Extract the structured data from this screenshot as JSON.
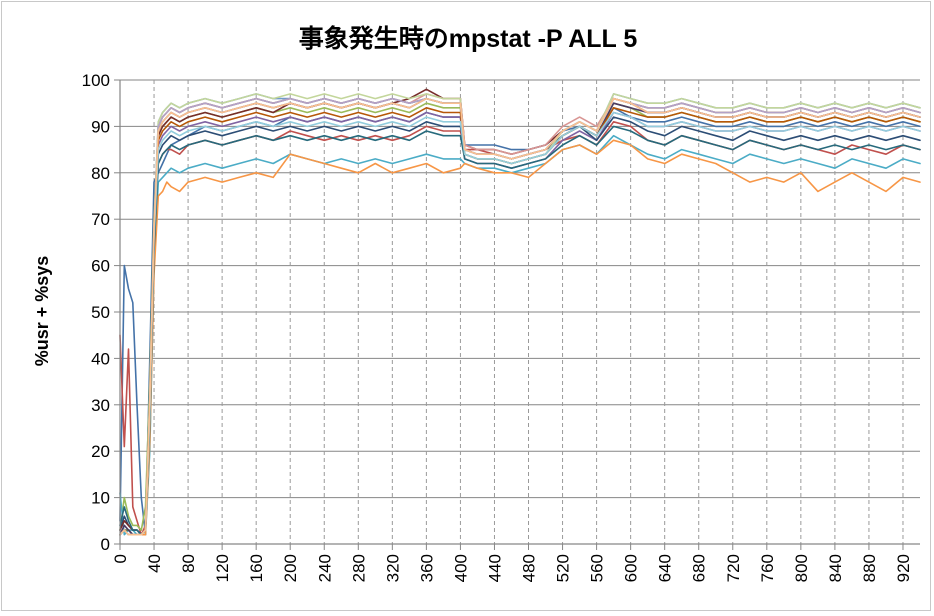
{
  "chart_data": {
    "type": "line",
    "title": "事象発生時のmpstat -P ALL 5",
    "xlabel": "",
    "ylabel": "%usr + %sys",
    "xlim": [
      0,
      940
    ],
    "ylim": [
      0,
      100
    ],
    "y_ticks": [
      "0",
      "10",
      "20",
      "30",
      "40",
      "50",
      "60",
      "70",
      "80",
      "90",
      "100"
    ],
    "x_ticks": [
      "0",
      "40",
      "80",
      "120",
      "160",
      "200",
      "240",
      "280",
      "320",
      "360",
      "400",
      "440",
      "480",
      "520",
      "560",
      "600",
      "640",
      "680",
      "720",
      "760",
      "800",
      "840",
      "880",
      "920"
    ],
    "grid": {
      "horizontal": "solid",
      "vertical": "dashed"
    },
    "legend": "none",
    "x": [
      0,
      5,
      10,
      15,
      20,
      25,
      30,
      35,
      40,
      45,
      50,
      55,
      60,
      70,
      80,
      100,
      120,
      140,
      160,
      180,
      200,
      220,
      240,
      260,
      280,
      300,
      320,
      340,
      360,
      380,
      400,
      405,
      420,
      440,
      460,
      480,
      500,
      520,
      540,
      560,
      580,
      600,
      620,
      640,
      660,
      680,
      700,
      720,
      740,
      760,
      780,
      800,
      820,
      840,
      860,
      880,
      900,
      920,
      940
    ],
    "series": [
      {
        "color": "#4472a8",
        "values": [
          5,
          60,
          55,
          52,
          30,
          10,
          2,
          40,
          78,
          80,
          82,
          84,
          86,
          87,
          88,
          90,
          89,
          90,
          91,
          90,
          92,
          91,
          92,
          91,
          92,
          91,
          92,
          91,
          93,
          92,
          92,
          86,
          86,
          86,
          85,
          85,
          86,
          89,
          90,
          88,
          94,
          92,
          91,
          91,
          92,
          91,
          90,
          90,
          91,
          90,
          90,
          91,
          90,
          91,
          90,
          91,
          90,
          91,
          90
        ]
      },
      {
        "color": "#c0504d",
        "values": [
          45,
          21,
          42,
          8,
          5,
          2,
          4,
          25,
          68,
          82,
          84,
          85,
          85,
          84,
          86,
          87,
          86,
          87,
          88,
          87,
          89,
          88,
          87,
          88,
          87,
          88,
          87,
          88,
          90,
          89,
          89,
          85,
          85,
          84,
          83,
          84,
          85,
          87,
          88,
          86,
          91,
          90,
          87,
          86,
          88,
          87,
          86,
          85,
          87,
          86,
          85,
          86,
          85,
          84,
          86,
          85,
          84,
          86,
          85
        ]
      },
      {
        "color": "#9bbb59",
        "values": [
          3,
          10,
          6,
          4,
          4,
          3,
          8,
          35,
          70,
          88,
          90,
          91,
          92,
          91,
          92,
          93,
          92,
          93,
          94,
          93,
          94,
          93,
          94,
          93,
          94,
          93,
          94,
          93,
          95,
          94,
          94,
          84,
          83,
          83,
          82,
          83,
          84,
          88,
          90,
          88,
          95,
          94,
          92,
          92,
          93,
          92,
          91,
          91,
          92,
          91,
          91,
          92,
          91,
          92,
          91,
          92,
          91,
          92,
          91
        ]
      },
      {
        "color": "#8064a2",
        "values": [
          2,
          4,
          3,
          2,
          2,
          2,
          3,
          30,
          66,
          86,
          88,
          89,
          90,
          89,
          90,
          91,
          90,
          91,
          92,
          91,
          92,
          91,
          92,
          91,
          92,
          91,
          92,
          91,
          93,
          92,
          92,
          83,
          82,
          82,
          81,
          82,
          83,
          87,
          89,
          87,
          93,
          92,
          90,
          90,
          91,
          90,
          89,
          89,
          90,
          89,
          89,
          90,
          89,
          90,
          89,
          90,
          89,
          90,
          89
        ]
      },
      {
        "color": "#4bacc6",
        "values": [
          11,
          2,
          3,
          3,
          2,
          2,
          2,
          20,
          60,
          78,
          79,
          80,
          81,
          80,
          81,
          82,
          81,
          82,
          83,
          82,
          84,
          83,
          82,
          83,
          82,
          83,
          82,
          83,
          84,
          83,
          83,
          82,
          81,
          81,
          80,
          81,
          82,
          85,
          86,
          84,
          88,
          86,
          84,
          83,
          85,
          84,
          83,
          82,
          84,
          83,
          82,
          83,
          82,
          81,
          83,
          82,
          81,
          83,
          82
        ]
      },
      {
        "color": "#f79646",
        "values": [
          2,
          3,
          2,
          2,
          2,
          2,
          2,
          22,
          58,
          75,
          76,
          78,
          77,
          76,
          78,
          79,
          78,
          79,
          80,
          79,
          84,
          83,
          82,
          81,
          80,
          82,
          80,
          81,
          82,
          80,
          81,
          82,
          81,
          80,
          80,
          79,
          82,
          85,
          86,
          84,
          87,
          86,
          83,
          82,
          84,
          83,
          82,
          80,
          78,
          79,
          78,
          80,
          76,
          78,
          80,
          78,
          76,
          79,
          78
        ]
      },
      {
        "color": "#2c4d75",
        "values": [
          3,
          6,
          4,
          3,
          3,
          2,
          3,
          28,
          65,
          84,
          86,
          87,
          88,
          87,
          88,
          89,
          88,
          89,
          90,
          89,
          90,
          89,
          90,
          89,
          90,
          89,
          90,
          89,
          91,
          90,
          90,
          85,
          84,
          84,
          83,
          84,
          85,
          88,
          90,
          87,
          92,
          91,
          89,
          88,
          90,
          89,
          88,
          87,
          89,
          88,
          87,
          88,
          87,
          88,
          87,
          88,
          87,
          88,
          87
        ]
      },
      {
        "color": "#772c2a",
        "values": [
          3,
          5,
          4,
          3,
          3,
          2,
          3,
          32,
          68,
          88,
          90,
          91,
          92,
          91,
          92,
          93,
          92,
          93,
          94,
          93,
          95,
          94,
          95,
          94,
          95,
          94,
          95,
          96,
          98,
          96,
          96,
          86,
          85,
          85,
          84,
          85,
          86,
          89,
          91,
          89,
          96,
          95,
          93,
          93,
          94,
          93,
          92,
          92,
          93,
          92,
          92,
          93,
          92,
          93,
          92,
          93,
          92,
          93,
          92
        ]
      },
      {
        "color": "#5f7530",
        "values": [
          2,
          3,
          3,
          2,
          2,
          2,
          3,
          34,
          70,
          90,
          92,
          93,
          94,
          93,
          94,
          95,
          94,
          95,
          96,
          95,
          96,
          95,
          96,
          95,
          96,
          95,
          96,
          95,
          96,
          95,
          95,
          85,
          84,
          84,
          83,
          84,
          85,
          89,
          91,
          89,
          96,
          95,
          94,
          94,
          95,
          94,
          93,
          93,
          94,
          93,
          93,
          94,
          93,
          94,
          93,
          94,
          93,
          94,
          93
        ]
      },
      {
        "color": "#4d3b62",
        "values": [
          2,
          4,
          3,
          2,
          2,
          2,
          3,
          30,
          67,
          89,
          91,
          92,
          93,
          92,
          93,
          94,
          93,
          94,
          95,
          94,
          95,
          94,
          95,
          94,
          95,
          94,
          95,
          94,
          96,
          95,
          95,
          84,
          83,
          83,
          82,
          83,
          84,
          88,
          90,
          88,
          95,
          94,
          93,
          93,
          94,
          93,
          92,
          92,
          93,
          92,
          92,
          93,
          92,
          93,
          92,
          93,
          92,
          93,
          92
        ]
      },
      {
        "color": "#276a7c",
        "values": [
          4,
          8,
          5,
          3,
          3,
          2,
          3,
          26,
          63,
          82,
          84,
          85,
          86,
          85,
          86,
          87,
          86,
          87,
          88,
          87,
          88,
          87,
          88,
          87,
          88,
          87,
          88,
          87,
          89,
          88,
          88,
          83,
          82,
          82,
          81,
          82,
          83,
          86,
          88,
          86,
          90,
          89,
          87,
          86,
          88,
          87,
          86,
          85,
          87,
          86,
          85,
          86,
          85,
          86,
          85,
          86,
          85,
          86,
          85
        ]
      },
      {
        "color": "#b65708",
        "values": [
          2,
          3,
          2,
          2,
          2,
          2,
          3,
          29,
          66,
          87,
          89,
          90,
          91,
          90,
          91,
          92,
          91,
          92,
          93,
          92,
          93,
          92,
          93,
          92,
          93,
          92,
          93,
          92,
          94,
          93,
          93,
          84,
          83,
          83,
          82,
          83,
          84,
          88,
          90,
          88,
          94,
          93,
          92,
          92,
          93,
          92,
          91,
          91,
          92,
          91,
          91,
          92,
          91,
          92,
          91,
          92,
          91,
          92,
          91
        ]
      },
      {
        "color": "#729aca",
        "values": [
          2,
          3,
          2,
          2,
          2,
          2,
          3,
          33,
          69,
          91,
          93,
          94,
          95,
          94,
          95,
          96,
          95,
          96,
          97,
          96,
          96,
          95,
          96,
          95,
          96,
          95,
          96,
          95,
          96,
          95,
          95,
          85,
          84,
          84,
          83,
          84,
          85,
          89,
          91,
          89,
          97,
          96,
          95,
          95,
          96,
          95,
          94,
          94,
          95,
          94,
          94,
          95,
          94,
          95,
          94,
          95,
          94,
          95,
          94
        ]
      },
      {
        "color": "#d99694",
        "values": [
          2,
          3,
          2,
          2,
          2,
          2,
          3,
          31,
          68,
          90,
          92,
          93,
          94,
          93,
          94,
          95,
          94,
          95,
          96,
          95,
          96,
          95,
          96,
          95,
          96,
          95,
          96,
          95,
          97,
          96,
          96,
          86,
          85,
          85,
          84,
          85,
          86,
          90,
          92,
          90,
          96,
          95,
          94,
          94,
          95,
          94,
          93,
          93,
          94,
          93,
          93,
          94,
          93,
          94,
          93,
          94,
          93,
          94,
          93
        ]
      },
      {
        "color": "#c3d69b",
        "values": [
          2,
          3,
          2,
          2,
          2,
          2,
          3,
          32,
          69,
          91,
          93,
          94,
          95,
          94,
          95,
          96,
          95,
          96,
          97,
          96,
          97,
          96,
          97,
          96,
          97,
          96,
          97,
          96,
          97,
          96,
          96,
          84,
          83,
          83,
          82,
          83,
          84,
          89,
          91,
          89,
          97,
          96,
          95,
          95,
          96,
          95,
          94,
          94,
          95,
          94,
          94,
          95,
          94,
          95,
          94,
          95,
          94,
          95,
          94
        ]
      },
      {
        "color": "#b3a2c7",
        "values": [
          2,
          3,
          2,
          2,
          2,
          2,
          3,
          30,
          68,
          90,
          92,
          93,
          94,
          93,
          94,
          95,
          94,
          95,
          96,
          95,
          96,
          95,
          96,
          95,
          96,
          95,
          96,
          95,
          96,
          95,
          95,
          85,
          84,
          84,
          83,
          84,
          85,
          89,
          91,
          89,
          96,
          95,
          94,
          94,
          95,
          94,
          93,
          93,
          94,
          93,
          93,
          94,
          93,
          94,
          93,
          94,
          93,
          94,
          93
        ]
      },
      {
        "color": "#93cddd",
        "values": [
          2,
          3,
          2,
          2,
          2,
          2,
          3,
          28,
          66,
          85,
          87,
          88,
          89,
          88,
          89,
          90,
          89,
          90,
          91,
          90,
          91,
          90,
          91,
          90,
          91,
          90,
          91,
          90,
          92,
          91,
          91,
          84,
          83,
          83,
          82,
          83,
          84,
          88,
          90,
          88,
          93,
          92,
          90,
          90,
          91,
          90,
          89,
          89,
          90,
          89,
          89,
          90,
          89,
          90,
          89,
          90,
          89,
          90,
          89
        ]
      },
      {
        "color": "#fac090",
        "values": [
          2,
          3,
          2,
          2,
          2,
          2,
          3,
          31,
          68,
          89,
          91,
          92,
          93,
          92,
          93,
          94,
          93,
          94,
          95,
          94,
          95,
          94,
          95,
          94,
          95,
          94,
          95,
          94,
          96,
          95,
          95,
          85,
          84,
          84,
          83,
          84,
          85,
          89,
          91,
          89,
          96,
          95,
          93,
          93,
          94,
          93,
          92,
          92,
          93,
          92,
          92,
          93,
          92,
          93,
          92,
          93,
          92,
          93,
          92
        ]
      }
    ]
  }
}
